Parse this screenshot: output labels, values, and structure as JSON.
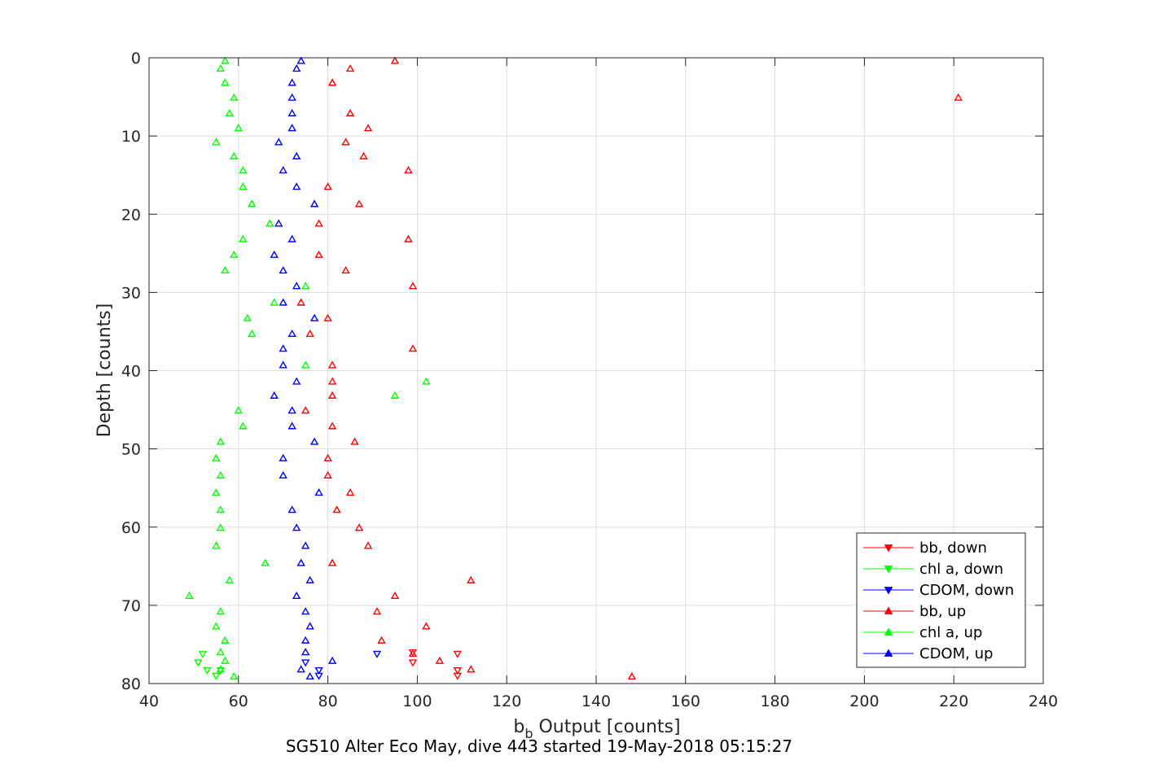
{
  "chart_data": {
    "type": "scatter",
    "caption": "SG510 Alter Eco May, dive 443 started 19-May-2018 05:15:27",
    "xlabel": {
      "main": "b",
      "sub": "b",
      "rest": " Output [counts]"
    },
    "ylabel": "Depth [counts]",
    "xlim": [
      40,
      240
    ],
    "ylim": [
      0,
      80
    ],
    "y_reversed": true,
    "grid": true,
    "legend_position": "bottom-right",
    "x_ticks": [
      40,
      60,
      80,
      100,
      120,
      140,
      160,
      180,
      200,
      220,
      240
    ],
    "y_ticks": [
      0,
      10,
      20,
      30,
      40,
      50,
      60,
      70,
      80
    ],
    "series": [
      {
        "name": "bb, down",
        "color": "#ff0000",
        "marker": "triangle-down",
        "points": [
          [
            109,
            76.2
          ],
          [
            99,
            76.0
          ],
          [
            99,
            77.3
          ],
          [
            109,
            78.3
          ],
          [
            109,
            79.0
          ]
        ]
      },
      {
        "name": "chl a, down",
        "color": "#00ff00",
        "marker": "triangle-down",
        "points": [
          [
            52,
            76.2
          ],
          [
            51,
            77.3
          ],
          [
            53,
            78.3
          ],
          [
            56,
            78.3
          ],
          [
            55,
            79.0
          ]
        ]
      },
      {
        "name": "CDOM, down",
        "color": "#0000ff",
        "marker": "triangle-down",
        "points": [
          [
            91,
            76.2
          ],
          [
            75,
            77.3
          ],
          [
            78,
            78.3
          ],
          [
            78,
            79.0
          ]
        ]
      },
      {
        "name": "bb, up",
        "color": "#ff0000",
        "marker": "triangle-up",
        "points": [
          [
            95,
            0.4
          ],
          [
            85,
            1.4
          ],
          [
            81,
            3.2
          ],
          [
            221,
            5.1
          ],
          [
            85,
            7.1
          ],
          [
            89,
            9.0
          ],
          [
            84,
            10.8
          ],
          [
            88,
            12.6
          ],
          [
            98,
            14.4
          ],
          [
            80,
            16.5
          ],
          [
            87,
            18.7
          ],
          [
            78,
            21.2
          ],
          [
            98,
            23.2
          ],
          [
            78,
            25.2
          ],
          [
            84,
            27.2
          ],
          [
            99,
            29.2
          ],
          [
            74,
            31.3
          ],
          [
            80,
            33.3
          ],
          [
            76,
            35.3
          ],
          [
            99,
            37.2
          ],
          [
            81,
            39.3
          ],
          [
            81,
            41.4
          ],
          [
            81,
            43.2
          ],
          [
            75,
            45.1
          ],
          [
            81,
            47.1
          ],
          [
            86,
            49.1
          ],
          [
            80,
            51.2
          ],
          [
            80,
            53.4
          ],
          [
            85,
            55.6
          ],
          [
            82,
            57.8
          ],
          [
            87,
            60.1
          ],
          [
            89,
            62.4
          ],
          [
            81,
            64.6
          ],
          [
            112,
            66.8
          ],
          [
            95,
            68.8
          ],
          [
            91,
            70.8
          ],
          [
            102,
            72.7
          ],
          [
            92,
            74.5
          ],
          [
            99,
            76.2
          ],
          [
            105,
            77.1
          ],
          [
            112,
            78.2
          ],
          [
            148,
            79.1
          ]
        ]
      },
      {
        "name": "chl a, up",
        "color": "#00ff00",
        "marker": "triangle-up",
        "points": [
          [
            57,
            0.4
          ],
          [
            56,
            1.4
          ],
          [
            57,
            3.2
          ],
          [
            59,
            5.1
          ],
          [
            58,
            7.1
          ],
          [
            60,
            9.0
          ],
          [
            55,
            10.8
          ],
          [
            59,
            12.6
          ],
          [
            61,
            14.4
          ],
          [
            61,
            16.5
          ],
          [
            63,
            18.7
          ],
          [
            67,
            21.2
          ],
          [
            61,
            23.2
          ],
          [
            59,
            25.2
          ],
          [
            57,
            27.2
          ],
          [
            75,
            29.2
          ],
          [
            68,
            31.3
          ],
          [
            62,
            33.3
          ],
          [
            63,
            35.3
          ],
          [
            75,
            39.3
          ],
          [
            102,
            41.4
          ],
          [
            95,
            43.2
          ],
          [
            60,
            45.1
          ],
          [
            61,
            47.1
          ],
          [
            56,
            49.1
          ],
          [
            55,
            51.2
          ],
          [
            56,
            53.4
          ],
          [
            55,
            55.6
          ],
          [
            56,
            57.8
          ],
          [
            56,
            60.1
          ],
          [
            55,
            62.4
          ],
          [
            66,
            64.6
          ],
          [
            58,
            66.8
          ],
          [
            49,
            68.8
          ],
          [
            56,
            70.8
          ],
          [
            55,
            72.7
          ],
          [
            57,
            74.5
          ],
          [
            56,
            76.0
          ],
          [
            57,
            77.1
          ],
          [
            56,
            78.2
          ],
          [
            59,
            79.1
          ]
        ]
      },
      {
        "name": "CDOM, up",
        "color": "#0000ff",
        "marker": "triangle-up",
        "points": [
          [
            74,
            0.4
          ],
          [
            73,
            1.4
          ],
          [
            72,
            3.2
          ],
          [
            72,
            5.1
          ],
          [
            72,
            7.1
          ],
          [
            72,
            9.0
          ],
          [
            69,
            10.8
          ],
          [
            73,
            12.6
          ],
          [
            70,
            14.4
          ],
          [
            73,
            16.5
          ],
          [
            77,
            18.7
          ],
          [
            69,
            21.2
          ],
          [
            72,
            23.2
          ],
          [
            68,
            25.2
          ],
          [
            70,
            27.2
          ],
          [
            73,
            29.2
          ],
          [
            70,
            31.3
          ],
          [
            77,
            33.3
          ],
          [
            72,
            35.3
          ],
          [
            70,
            37.2
          ],
          [
            70,
            39.3
          ],
          [
            73,
            41.4
          ],
          [
            68,
            43.2
          ],
          [
            72,
            45.1
          ],
          [
            72,
            47.1
          ],
          [
            77,
            49.1
          ],
          [
            70,
            51.2
          ],
          [
            70,
            53.4
          ],
          [
            78,
            55.6
          ],
          [
            72,
            57.8
          ],
          [
            73,
            60.1
          ],
          [
            75,
            62.4
          ],
          [
            74,
            64.6
          ],
          [
            76,
            66.8
          ],
          [
            73,
            68.8
          ],
          [
            75,
            70.8
          ],
          [
            76,
            72.7
          ],
          [
            75,
            74.5
          ],
          [
            75,
            76.0
          ],
          [
            81,
            77.1
          ],
          [
            74,
            78.2
          ],
          [
            76,
            79.1
          ]
        ]
      }
    ]
  }
}
